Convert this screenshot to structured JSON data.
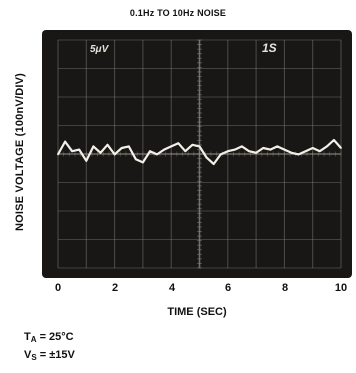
{
  "chart_data": {
    "type": "line",
    "title": "0.1Hz TO 10Hz NOISE",
    "xlabel": "TIME (SEC)",
    "ylabel": "NOISE VOLTAGE (100nV/DIV)",
    "xlim": [
      0,
      10
    ],
    "xticks": [
      "0",
      "2",
      "4",
      "6",
      "8",
      "10"
    ],
    "grid": true,
    "scope_annotations": {
      "vertical_scale": "5μV",
      "horizontal_scale": "1S"
    },
    "series": [
      {
        "x": [
          0,
          0.25,
          0.5,
          0.75,
          1.0,
          1.25,
          1.5,
          1.75,
          2.0,
          2.25,
          2.5,
          2.75,
          3.0,
          3.25,
          3.5,
          3.75,
          4.0,
          4.25,
          4.5,
          4.75,
          5.0,
          5.25,
          5.5,
          5.75,
          6.0,
          6.25,
          6.5,
          6.75,
          7.0,
          7.25,
          7.5,
          7.75,
          8.0,
          8.25,
          8.5,
          8.75,
          9.0,
          9.25,
          9.5,
          9.75,
          10.0
        ],
        "y": [
          0.1,
          0.9,
          0.3,
          0.4,
          -0.3,
          0.6,
          0.2,
          0.7,
          0.1,
          0.5,
          0.6,
          -0.2,
          -0.4,
          0.3,
          0.1,
          0.4,
          0.6,
          0.8,
          0.3,
          0.7,
          0.6,
          -0.1,
          -0.5,
          0.1,
          0.3,
          0.4,
          0.6,
          0.3,
          0.2,
          0.5,
          0.4,
          0.6,
          0.4,
          0.2,
          0.1,
          0.3,
          0.5,
          0.3,
          0.6,
          1.0,
          0.5
        ]
      }
    ]
  },
  "conditions": {
    "ta_symbol": "T",
    "ta_sub": "A",
    "ta_value": " = 25°C",
    "vs_symbol": "V",
    "vs_sub": "S",
    "vs_value": " = ±15V"
  },
  "colors": {
    "screen": "#181716",
    "grid": "#8f8f86",
    "trace": "#f2f0e6"
  }
}
